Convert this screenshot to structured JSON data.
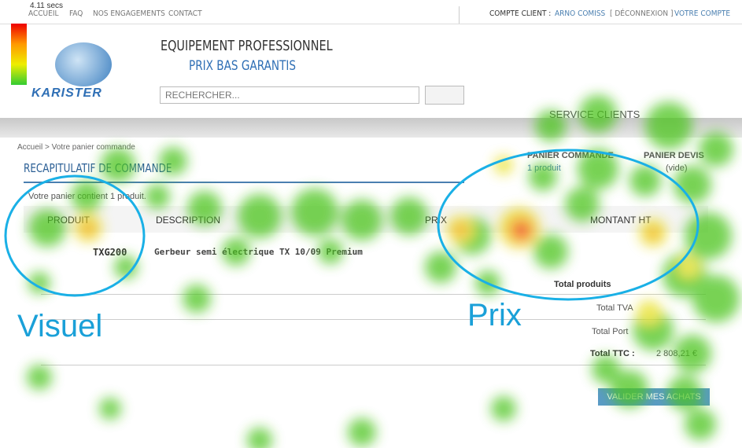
{
  "legend": {
    "duration": "4.11 secs"
  },
  "nav": {
    "items": [
      "ACCUEIL",
      "FAQ",
      "NOS ENGAGEMENTS",
      "CONTACT"
    ]
  },
  "account": {
    "label": "COMPTE CLIENT :",
    "user": "ARNO COMISS",
    "logout": "[ DÉCONNEXION ]",
    "link": "VOTRE COMPTE"
  },
  "header": {
    "logo": "KARISTER",
    "title": "EQUIPEMENT PROFESSIONNEL",
    "subtitle": "PRIX BAS GARANTIS",
    "search": "RECHERCHER...",
    "service": "SERVICE CLIENTS"
  },
  "breadcrumb": [
    "Accueil",
    ">",
    "Votre panier commande"
  ],
  "cart": {
    "order_title": "PANIER COMMANDE",
    "order_count": "1 produit",
    "quote_title": "PANIER DEVIS",
    "quote_count": "(vide)"
  },
  "recap": {
    "title": "RECAPITULATIF DE COMMANDE",
    "intro": "Votre panier contient 1 produit.",
    "headers": [
      "PRODUIT",
      "DESCRIPTION",
      "PRIX",
      "MONTANT HT"
    ],
    "row": {
      "ref": "TXG200",
      "description": "Gerbeur semi électrique TX 10/09 Premium"
    },
    "totals": {
      "products": "Total produits",
      "vat": "Total TVA",
      "port": "Total Port",
      "ttc_label": "Total TTC :",
      "ttc_value": "2 808,21 €"
    },
    "button": "VALIDER MES ACHATS"
  },
  "annotations": [
    "Visuel",
    "Prix"
  ]
}
